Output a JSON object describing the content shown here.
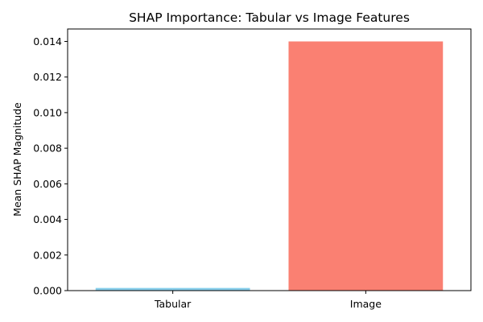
{
  "chart_data": {
    "type": "bar",
    "title": "SHAP Importance: Tabular vs Image Features",
    "xlabel": "",
    "ylabel": "Mean SHAP Magnitude",
    "categories": [
      "Tabular",
      "Image"
    ],
    "values": [
      0.00015,
      0.014
    ],
    "colors": [
      "#87ceeb",
      "#fa8072"
    ],
    "ylim": [
      0,
      0.0147
    ],
    "yticks": [
      0.0,
      0.002,
      0.004,
      0.006,
      0.008,
      0.01,
      0.012,
      0.014
    ],
    "ytick_labels": [
      "0.000",
      "0.002",
      "0.004",
      "0.006",
      "0.008",
      "0.010",
      "0.012",
      "0.014"
    ],
    "grid": false,
    "legend": "none"
  }
}
